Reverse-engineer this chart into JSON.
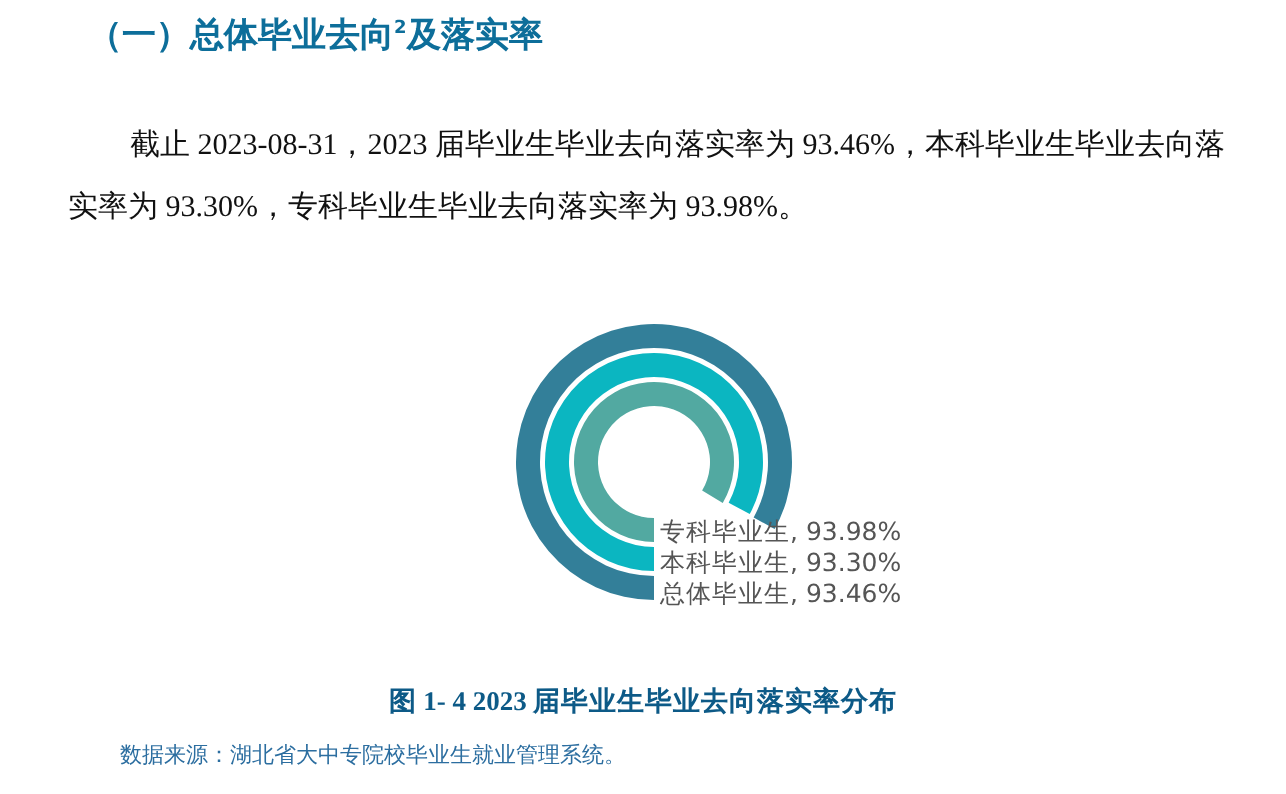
{
  "chart_data": {
    "type": "other",
    "title": "（一）总体毕业去向$^{2}$及落实率",
    "subtitle": "截止 2023-08-31，2023 届毕业生毕业去向落实率为 93.46%，本科毕业生毕业去向落实率为 93.30%，专科毕业生毕业去向落实率为 93.98%。",
    "xlabel": "图 1- 4  2023 届毕业生毕业去向落实率分布",
    "annotations": [
      "数据来源：湖北省大中专院校毕业生就业管理系统。"
    ],
    "categories": [
      "专科毕业生",
      "本科毕业生",
      "总体毕业生"
    ],
    "values": [
      93.98,
      93.3,
      93.46
    ],
    "value_labels": [
      ", 93.98%",
      ", 93.30%",
      ", 93.46%"
    ],
    "colors": [
      "#52a9a1",
      "#0bb6c1",
      "#337f99"
    ]
  }
}
